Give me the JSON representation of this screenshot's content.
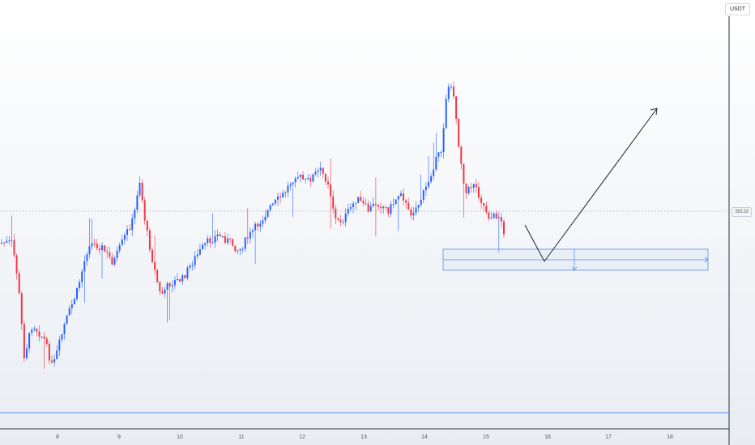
{
  "price_axis": {
    "currency_label": "USDT",
    "last_price_label": "38133"
  },
  "chart_data": {
    "type": "candlestick",
    "x_axis": {
      "tick_labels": [
        "8",
        "9",
        "10",
        "11",
        "12",
        "13",
        "14",
        "15",
        "16",
        "17",
        "18"
      ]
    },
    "y_axis": {
      "price_range_approx": [
        29500,
        47500
      ],
      "last_price": 38133
    },
    "grid": false,
    "colors": {
      "up": "#2962ff",
      "down": "#f23645",
      "lines": "#5b8def",
      "drawing": "#1e2230"
    },
    "annotations": [
      "horizontal support line",
      "rectangle zone",
      "projected path down then up",
      "arrow up"
    ],
    "series_ohlc_approx": []
  }
}
